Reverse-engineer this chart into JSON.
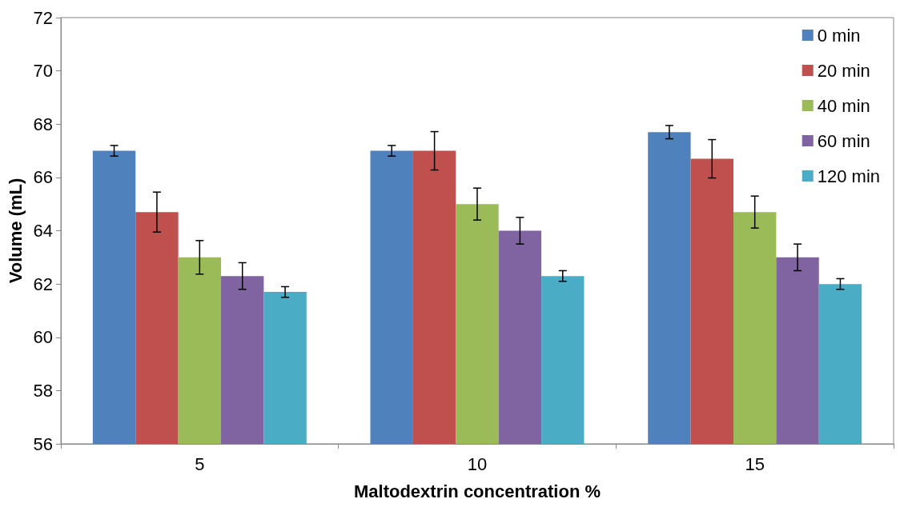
{
  "chart_data": {
    "type": "bar",
    "xlabel": "Maltodextrin concentration %",
    "ylabel": "Volume (mL)",
    "categories": [
      "5",
      "10",
      "15"
    ],
    "series": [
      {
        "name": "0 min",
        "color": "#4f81bd",
        "values": [
          67.0,
          67.0,
          67.7
        ],
        "errors": [
          0.2,
          0.2,
          0.25
        ]
      },
      {
        "name": "20 min",
        "color": "#c0504d",
        "values": [
          64.7,
          67.0,
          66.7
        ],
        "errors": [
          0.75,
          0.72,
          0.72
        ]
      },
      {
        "name": "40 min",
        "color": "#9bbb59",
        "values": [
          63.0,
          65.0,
          64.7
        ],
        "errors": [
          0.63,
          0.6,
          0.6
        ]
      },
      {
        "name": "60 min",
        "color": "#8064a2",
        "values": [
          62.3,
          64.0,
          63.0
        ],
        "errors": [
          0.5,
          0.5,
          0.5
        ]
      },
      {
        "name": "120 min",
        "color": "#4bacc6",
        "values": [
          61.7,
          62.3,
          62.0
        ],
        "errors": [
          0.2,
          0.2,
          0.2
        ]
      }
    ],
    "ylim": [
      56,
      72
    ],
    "yticks": [
      56,
      58,
      60,
      62,
      64,
      66,
      68,
      70,
      72
    ],
    "grid": false,
    "legend": "top right"
  }
}
